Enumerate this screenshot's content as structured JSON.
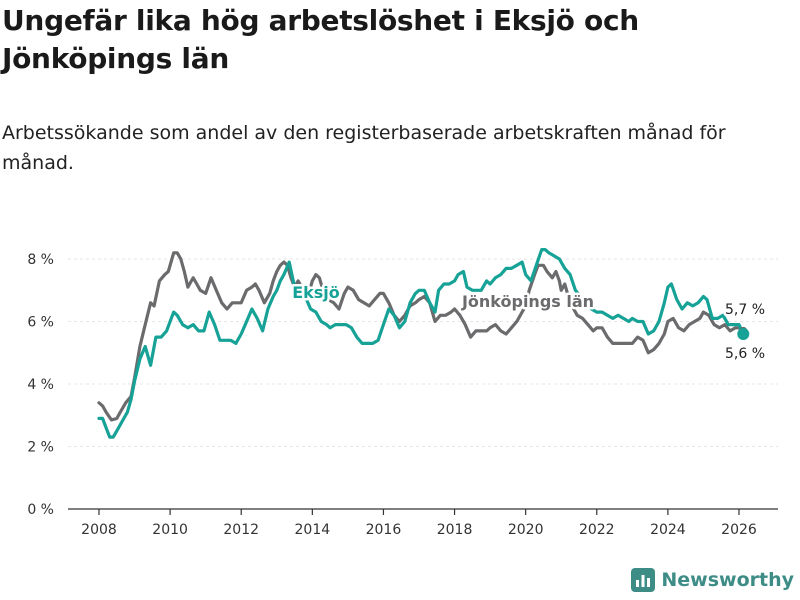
{
  "title": "Ungefär lika hög arbetslöshet i Eksjö och Jönköpings län",
  "subtitle": "Arbetssökande som andel av den registerbaserade arbetskraften månad för månad.",
  "brand": {
    "name": "Newsworthy",
    "icon": "newsworthy-bar-chart-icon"
  },
  "colors": {
    "eksjo": "#16a296",
    "jonkoping": "#6b6b6e",
    "axis": "#333333",
    "grid": "#e6e6e6"
  },
  "chart_data": {
    "type": "line",
    "title": "Ungefär lika hög arbetslöshet i Eksjö och Jönköpings län",
    "xlabel": "",
    "ylabel": "",
    "xlim": [
      2007.6,
      2026.75
    ],
    "ylim": [
      0,
      8.5
    ],
    "y_ticks": [
      0,
      2,
      4,
      6,
      8
    ],
    "y_tick_labels": [
      "0 %",
      "2 %",
      "4 %",
      "6 %",
      "8 %"
    ],
    "x_ticks": [
      2008,
      2010,
      2012,
      2014,
      2016,
      2018,
      2020,
      2022,
      2024,
      2026
    ],
    "x_tick_labels": [
      "2008",
      "2010",
      "2012",
      "2014",
      "2016",
      "2018",
      "2020",
      "2022",
      "2024",
      "2026"
    ],
    "series": [
      {
        "name": "Jönköpings län",
        "label": "Jönköpings län",
        "end_label": "5,7 %",
        "points": [
          [
            2008.0,
            3.4
          ],
          [
            2008.1,
            3.3
          ],
          [
            2008.2,
            3.1
          ],
          [
            2008.35,
            2.85
          ],
          [
            2008.5,
            2.9
          ],
          [
            2008.6,
            3.1
          ],
          [
            2008.75,
            3.4
          ],
          [
            2008.9,
            3.6
          ],
          [
            2009.0,
            4.2
          ],
          [
            2009.15,
            5.2
          ],
          [
            2009.3,
            5.9
          ],
          [
            2009.45,
            6.6
          ],
          [
            2009.55,
            6.5
          ],
          [
            2009.7,
            7.3
          ],
          [
            2009.85,
            7.5
          ],
          [
            2009.95,
            7.6
          ],
          [
            2010.0,
            7.8
          ],
          [
            2010.1,
            8.2
          ],
          [
            2010.2,
            8.2
          ],
          [
            2010.3,
            8.0
          ],
          [
            2010.4,
            7.6
          ],
          [
            2010.5,
            7.1
          ],
          [
            2010.6,
            7.3
          ],
          [
            2010.65,
            7.4
          ],
          [
            2010.75,
            7.2
          ],
          [
            2010.85,
            7.0
          ],
          [
            2011.0,
            6.9
          ],
          [
            2011.15,
            7.4
          ],
          [
            2011.3,
            7.0
          ],
          [
            2011.45,
            6.6
          ],
          [
            2011.6,
            6.4
          ],
          [
            2011.75,
            6.6
          ],
          [
            2011.9,
            6.6
          ],
          [
            2012.0,
            6.6
          ],
          [
            2012.15,
            7.0
          ],
          [
            2012.3,
            7.1
          ],
          [
            2012.4,
            7.2
          ],
          [
            2012.5,
            7.0
          ],
          [
            2012.65,
            6.6
          ],
          [
            2012.8,
            6.9
          ],
          [
            2012.9,
            7.3
          ],
          [
            2013.0,
            7.6
          ],
          [
            2013.1,
            7.8
          ],
          [
            2013.2,
            7.9
          ],
          [
            2013.3,
            7.8
          ],
          [
            2013.4,
            7.4
          ],
          [
            2013.5,
            7.1
          ],
          [
            2013.6,
            7.3
          ],
          [
            2013.75,
            7.0
          ],
          [
            2013.9,
            6.9
          ],
          [
            2014.0,
            7.3
          ],
          [
            2014.1,
            7.5
          ],
          [
            2014.2,
            7.4
          ],
          [
            2014.3,
            7.0
          ],
          [
            2014.45,
            6.7
          ],
          [
            2014.6,
            6.6
          ],
          [
            2014.75,
            6.4
          ],
          [
            2014.9,
            6.9
          ],
          [
            2015.0,
            7.1
          ],
          [
            2015.15,
            7.0
          ],
          [
            2015.3,
            6.7
          ],
          [
            2015.45,
            6.6
          ],
          [
            2015.6,
            6.5
          ],
          [
            2015.75,
            6.7
          ],
          [
            2015.9,
            6.9
          ],
          [
            2016.0,
            6.9
          ],
          [
            2016.15,
            6.6
          ],
          [
            2016.3,
            6.2
          ],
          [
            2016.45,
            6.0
          ],
          [
            2016.6,
            6.2
          ],
          [
            2016.75,
            6.5
          ],
          [
            2016.9,
            6.6
          ],
          [
            2017.0,
            6.7
          ],
          [
            2017.15,
            6.8
          ],
          [
            2017.3,
            6.6
          ],
          [
            2017.45,
            6.0
          ],
          [
            2017.6,
            6.2
          ],
          [
            2017.75,
            6.2
          ],
          [
            2017.9,
            6.3
          ],
          [
            2018.0,
            6.4
          ],
          [
            2018.15,
            6.2
          ],
          [
            2018.3,
            5.9
          ],
          [
            2018.45,
            5.5
          ],
          [
            2018.6,
            5.7
          ],
          [
            2018.75,
            5.7
          ],
          [
            2018.9,
            5.7
          ],
          [
            2019.0,
            5.8
          ],
          [
            2019.15,
            5.9
          ],
          [
            2019.3,
            5.7
          ],
          [
            2019.45,
            5.6
          ],
          [
            2019.6,
            5.8
          ],
          [
            2019.75,
            6.0
          ],
          [
            2019.9,
            6.3
          ],
          [
            2020.0,
            6.5
          ],
          [
            2020.1,
            7.0
          ],
          [
            2020.25,
            7.5
          ],
          [
            2020.35,
            7.8
          ],
          [
            2020.5,
            7.8
          ],
          [
            2020.6,
            7.6
          ],
          [
            2020.75,
            7.4
          ],
          [
            2020.85,
            7.6
          ],
          [
            2020.95,
            7.3
          ],
          [
            2021.0,
            7.0
          ],
          [
            2021.1,
            7.2
          ],
          [
            2021.25,
            6.6
          ],
          [
            2021.35,
            6.4
          ],
          [
            2021.45,
            6.2
          ],
          [
            2021.6,
            6.1
          ],
          [
            2021.75,
            5.9
          ],
          [
            2021.9,
            5.7
          ],
          [
            2022.0,
            5.8
          ],
          [
            2022.15,
            5.8
          ],
          [
            2022.3,
            5.5
          ],
          [
            2022.45,
            5.3
          ],
          [
            2022.6,
            5.3
          ],
          [
            2022.75,
            5.3
          ],
          [
            2022.9,
            5.3
          ],
          [
            2023.0,
            5.3
          ],
          [
            2023.15,
            5.5
          ],
          [
            2023.3,
            5.4
          ],
          [
            2023.45,
            5.0
          ],
          [
            2023.6,
            5.1
          ],
          [
            2023.75,
            5.3
          ],
          [
            2023.9,
            5.6
          ],
          [
            2024.0,
            6.0
          ],
          [
            2024.15,
            6.1
          ],
          [
            2024.3,
            5.8
          ],
          [
            2024.45,
            5.7
          ],
          [
            2024.6,
            5.9
          ],
          [
            2024.75,
            6.0
          ],
          [
            2024.9,
            6.1
          ],
          [
            2025.0,
            6.3
          ],
          [
            2025.15,
            6.2
          ],
          [
            2025.3,
            5.9
          ],
          [
            2025.45,
            5.8
          ],
          [
            2025.6,
            5.9
          ],
          [
            2025.75,
            5.7
          ],
          [
            2025.9,
            5.8
          ],
          [
            2026.0,
            5.8
          ],
          [
            2026.12,
            5.7
          ]
        ]
      },
      {
        "name": "Eksjö",
        "label": "Eksjö",
        "end_label": "5,6 %",
        "points": [
          [
            2008.0,
            2.9
          ],
          [
            2008.1,
            2.9
          ],
          [
            2008.2,
            2.6
          ],
          [
            2008.3,
            2.3
          ],
          [
            2008.4,
            2.3
          ],
          [
            2008.5,
            2.5
          ],
          [
            2008.65,
            2.8
          ],
          [
            2008.8,
            3.1
          ],
          [
            2008.9,
            3.5
          ],
          [
            2009.0,
            4.1
          ],
          [
            2009.15,
            4.8
          ],
          [
            2009.3,
            5.2
          ],
          [
            2009.45,
            4.6
          ],
          [
            2009.6,
            5.5
          ],
          [
            2009.75,
            5.5
          ],
          [
            2009.9,
            5.7
          ],
          [
            2010.0,
            6.0
          ],
          [
            2010.1,
            6.3
          ],
          [
            2010.2,
            6.2
          ],
          [
            2010.35,
            5.9
          ],
          [
            2010.5,
            5.8
          ],
          [
            2010.65,
            5.9
          ],
          [
            2010.8,
            5.7
          ],
          [
            2010.95,
            5.7
          ],
          [
            2011.1,
            6.3
          ],
          [
            2011.25,
            5.9
          ],
          [
            2011.4,
            5.4
          ],
          [
            2011.55,
            5.4
          ],
          [
            2011.7,
            5.4
          ],
          [
            2011.85,
            5.3
          ],
          [
            2012.0,
            5.6
          ],
          [
            2012.15,
            6.0
          ],
          [
            2012.3,
            6.4
          ],
          [
            2012.45,
            6.1
          ],
          [
            2012.6,
            5.7
          ],
          [
            2012.75,
            6.4
          ],
          [
            2012.9,
            6.8
          ],
          [
            2013.0,
            7.0
          ],
          [
            2013.1,
            7.3
          ],
          [
            2013.2,
            7.5
          ],
          [
            2013.35,
            7.9
          ],
          [
            2013.5,
            7.1
          ],
          [
            2013.65,
            6.9
          ],
          [
            2013.8,
            6.8
          ],
          [
            2013.95,
            6.4
          ],
          [
            2014.1,
            6.3
          ],
          [
            2014.25,
            6.0
          ],
          [
            2014.4,
            5.9
          ],
          [
            2014.5,
            5.8
          ],
          [
            2014.65,
            5.9
          ],
          [
            2014.8,
            5.9
          ],
          [
            2014.95,
            5.9
          ],
          [
            2015.1,
            5.8
          ],
          [
            2015.25,
            5.5
          ],
          [
            2015.4,
            5.3
          ],
          [
            2015.55,
            5.3
          ],
          [
            2015.7,
            5.3
          ],
          [
            2015.85,
            5.4
          ],
          [
            2016.0,
            5.9
          ],
          [
            2016.15,
            6.4
          ],
          [
            2016.3,
            6.2
          ],
          [
            2016.45,
            5.8
          ],
          [
            2016.6,
            6.0
          ],
          [
            2016.75,
            6.6
          ],
          [
            2016.9,
            6.9
          ],
          [
            2017.0,
            7.0
          ],
          [
            2017.15,
            7.0
          ],
          [
            2017.3,
            6.6
          ],
          [
            2017.45,
            6.3
          ],
          [
            2017.55,
            7.0
          ],
          [
            2017.7,
            7.2
          ],
          [
            2017.85,
            7.2
          ],
          [
            2018.0,
            7.3
          ],
          [
            2018.1,
            7.5
          ],
          [
            2018.25,
            7.6
          ],
          [
            2018.35,
            7.1
          ],
          [
            2018.5,
            7.0
          ],
          [
            2018.6,
            7.0
          ],
          [
            2018.75,
            7.0
          ],
          [
            2018.9,
            7.3
          ],
          [
            2019.0,
            7.2
          ],
          [
            2019.15,
            7.4
          ],
          [
            2019.3,
            7.5
          ],
          [
            2019.45,
            7.7
          ],
          [
            2019.6,
            7.7
          ],
          [
            2019.75,
            7.8
          ],
          [
            2019.9,
            7.9
          ],
          [
            2020.0,
            7.5
          ],
          [
            2020.15,
            7.3
          ],
          [
            2020.3,
            7.8
          ],
          [
            2020.45,
            8.3
          ],
          [
            2020.55,
            8.3
          ],
          [
            2020.65,
            8.2
          ],
          [
            2020.8,
            8.1
          ],
          [
            2020.95,
            8.0
          ],
          [
            2021.1,
            7.7
          ],
          [
            2021.25,
            7.5
          ],
          [
            2021.4,
            7.0
          ],
          [
            2021.55,
            6.8
          ],
          [
            2021.7,
            6.6
          ],
          [
            2021.85,
            6.4
          ],
          [
            2022.0,
            6.3
          ],
          [
            2022.15,
            6.3
          ],
          [
            2022.3,
            6.2
          ],
          [
            2022.45,
            6.1
          ],
          [
            2022.6,
            6.2
          ],
          [
            2022.75,
            6.1
          ],
          [
            2022.9,
            6.0
          ],
          [
            2023.0,
            6.1
          ],
          [
            2023.15,
            6.0
          ],
          [
            2023.3,
            6.0
          ],
          [
            2023.45,
            5.6
          ],
          [
            2023.6,
            5.7
          ],
          [
            2023.75,
            6.0
          ],
          [
            2023.9,
            6.6
          ],
          [
            2024.0,
            7.1
          ],
          [
            2024.1,
            7.2
          ],
          [
            2024.25,
            6.7
          ],
          [
            2024.4,
            6.4
          ],
          [
            2024.55,
            6.6
          ],
          [
            2024.7,
            6.5
          ],
          [
            2024.85,
            6.6
          ],
          [
            2025.0,
            6.8
          ],
          [
            2025.1,
            6.7
          ],
          [
            2025.25,
            6.1
          ],
          [
            2025.4,
            6.1
          ],
          [
            2025.55,
            6.2
          ],
          [
            2025.7,
            5.9
          ],
          [
            2025.85,
            5.9
          ],
          [
            2026.0,
            5.9
          ],
          [
            2026.12,
            5.6
          ]
        ]
      }
    ]
  }
}
